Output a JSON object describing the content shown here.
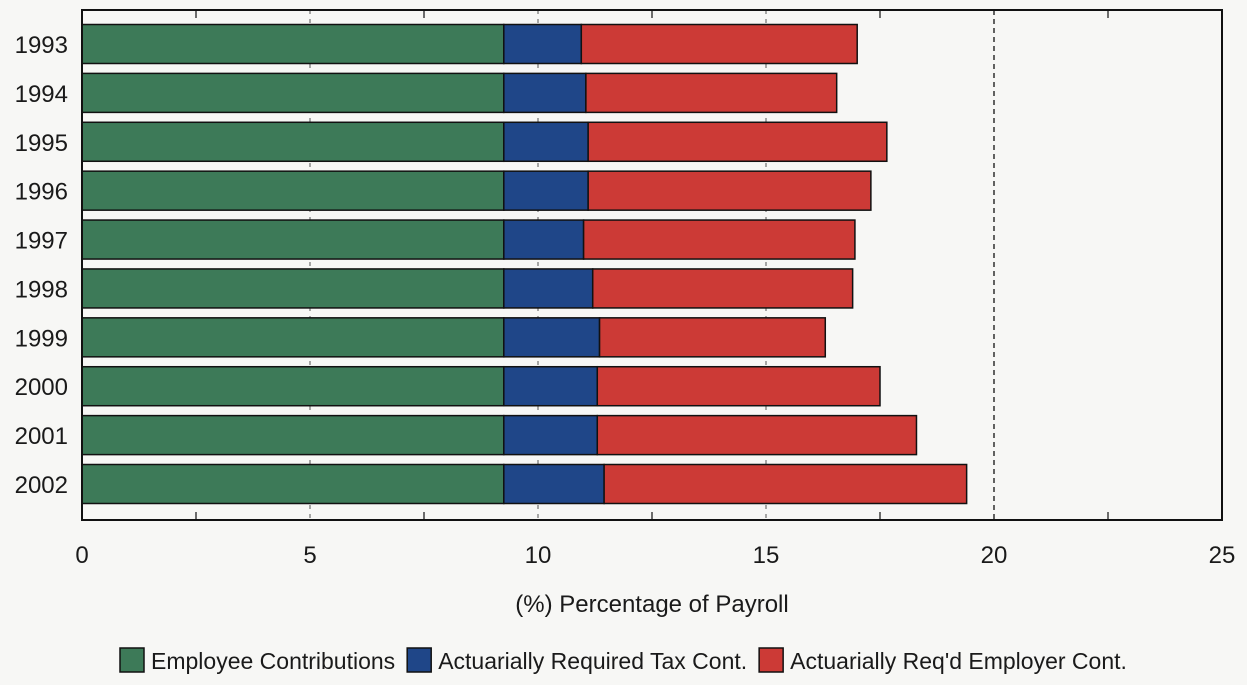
{
  "chart_data": {
    "type": "bar",
    "orientation": "horizontal",
    "stacked": true,
    "xlabel": "(%) Percentage of Payroll",
    "ylabel": "",
    "xlim": [
      0,
      25
    ],
    "xticks": [
      "0",
      "5",
      "10",
      "15",
      "20",
      "25"
    ],
    "reference_line": 20,
    "categories": [
      "1993",
      "1994",
      "1995",
      "1996",
      "1997",
      "1998",
      "1999",
      "2000",
      "2001",
      "2002"
    ],
    "series": [
      {
        "name": "Employee Contributions",
        "color": "#3d7a58",
        "values": [
          9.25,
          9.25,
          9.25,
          9.25,
          9.25,
          9.25,
          9.25,
          9.25,
          9.25,
          9.25
        ]
      },
      {
        "name": "Actuarially Required Tax Cont.",
        "color": "#1f4688",
        "values": [
          1.7,
          1.8,
          1.85,
          1.85,
          1.75,
          1.95,
          2.1,
          2.05,
          2.05,
          2.2
        ]
      },
      {
        "name": "Actuarially Req'd Employer Cont.",
        "color": "#cc3a36",
        "values": [
          6.05,
          5.5,
          6.55,
          6.2,
          5.95,
          5.7,
          4.95,
          6.2,
          7.0,
          7.95
        ]
      }
    ],
    "legend_position": "bottom",
    "grid": "vertical dashed"
  }
}
